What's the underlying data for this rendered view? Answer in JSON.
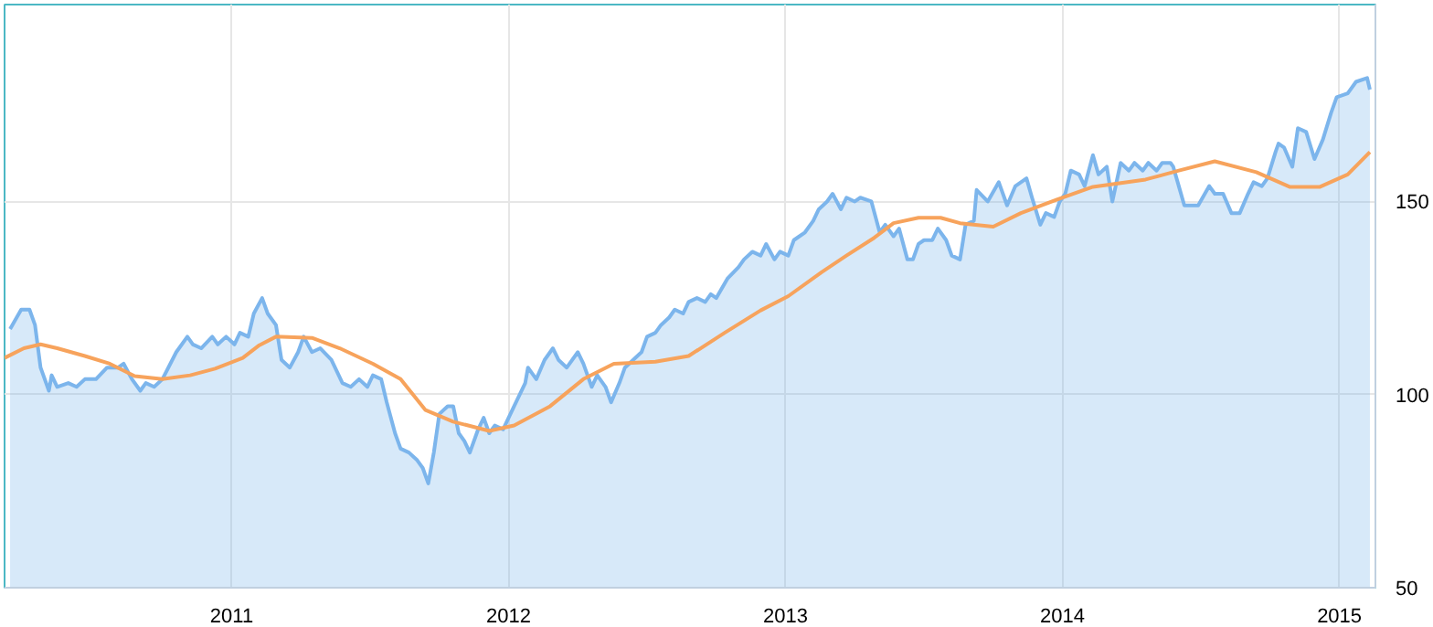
{
  "chart_data": {
    "type": "area",
    "x": [
      2010.2,
      2010.24,
      2010.27,
      2010.29,
      2010.31,
      2010.34,
      2010.35,
      2010.37,
      2010.41,
      2010.44,
      2010.47,
      2010.51,
      2010.55,
      2010.59,
      2010.61,
      2010.64,
      2010.67,
      2010.69,
      2010.72,
      2010.75,
      2010.8,
      2010.84,
      2010.86,
      2010.89,
      2010.93,
      2010.95,
      2010.98,
      2011.01,
      2011.03,
      2011.06,
      2011.08,
      2011.11,
      2011.13,
      2011.16,
      2011.18,
      2011.21,
      2011.24,
      2011.26,
      2011.29,
      2011.32,
      2011.36,
      2011.4,
      2011.43,
      2011.46,
      2011.49,
      2011.51,
      2011.54,
      2011.56,
      2011.59,
      2011.61,
      2011.64,
      2011.67,
      2011.69,
      2011.71,
      2011.73,
      2011.75,
      2011.78,
      2011.8,
      2011.82,
      2011.84,
      2011.86,
      2011.89,
      2011.91,
      2011.93,
      2011.95,
      2011.98,
      2012.02,
      2012.06,
      2012.07,
      2012.1,
      2012.13,
      2012.16,
      2012.18,
      2012.21,
      2012.25,
      2012.27,
      2012.3,
      2012.32,
      2012.35,
      2012.37,
      2012.4,
      2012.42,
      2012.45,
      2012.48,
      2012.5,
      2012.53,
      2012.55,
      2012.58,
      2012.6,
      2012.63,
      2012.65,
      2012.68,
      2012.71,
      2012.73,
      2012.75,
      2012.79,
      2012.83,
      2012.85,
      2012.88,
      2012.91,
      2012.93,
      2012.96,
      2012.98,
      2013.01,
      2013.03,
      2013.07,
      2013.1,
      2013.12,
      2013.15,
      2013.17,
      2013.2,
      2013.22,
      2013.25,
      2013.27,
      2013.31,
      2013.34,
      2013.36,
      2013.39,
      2013.41,
      2013.44,
      2013.46,
      2013.48,
      2013.5,
      2013.53,
      2013.55,
      2013.58,
      2013.6,
      2013.63,
      2013.65,
      2013.68,
      2013.69,
      2013.73,
      2013.77,
      2013.8,
      2013.83,
      2013.87,
      2013.89,
      2013.92,
      2013.94,
      2013.97,
      2013.99,
      2014.01,
      2014.03,
      2014.06,
      2014.08,
      2014.11,
      2014.13,
      2014.16,
      2014.18,
      2014.21,
      2014.24,
      2014.26,
      2014.29,
      2014.31,
      2014.34,
      2014.36,
      2014.39,
      2014.4,
      2014.42,
      2014.44,
      2014.46,
      2014.49,
      2014.53,
      2014.55,
      2014.58,
      2014.61,
      2014.64,
      2014.67,
      2014.69,
      2014.72,
      2014.74,
      2014.77,
      2014.78,
      2014.8,
      2014.83,
      2014.85,
      2014.88,
      2014.91,
      2014.94,
      2014.97,
      2014.99,
      2015.03,
      2015.06,
      2015.1,
      2015.11
    ],
    "xlim": [
      2010.18,
      2015.13
    ],
    "xticks": [
      2011,
      2012,
      2013,
      2014,
      2015
    ],
    "ylim": [
      50,
      201
    ],
    "yticks": [
      50,
      100,
      150
    ],
    "grid": true,
    "series": [
      {
        "color": "#7cb5ec",
        "values": [
          117,
          122,
          122,
          118,
          107,
          101,
          105,
          102,
          103,
          102,
          104,
          104,
          107,
          107,
          108,
          104,
          101,
          103,
          102,
          104,
          111,
          115,
          113,
          112,
          115,
          113,
          115,
          113,
          116,
          115,
          121,
          125,
          121,
          118,
          109,
          107,
          111,
          115,
          111,
          112,
          109,
          103,
          102,
          104,
          102,
          105,
          104,
          98,
          90,
          86,
          85,
          83,
          81,
          77,
          85,
          95,
          97,
          97,
          90,
          88,
          85,
          91,
          94,
          90,
          92,
          91,
          97,
          103,
          107,
          104,
          109,
          112,
          109,
          107,
          111,
          108,
          102,
          105,
          102,
          98,
          103,
          107,
          109,
          111,
          115,
          116,
          118,
          120,
          122,
          121,
          124,
          125,
          124,
          126,
          125,
          130,
          133,
          135,
          137,
          136,
          139,
          135,
          137,
          136,
          140,
          142,
          145,
          148,
          150,
          152,
          148,
          151,
          150,
          151,
          150,
          142,
          144,
          141,
          143,
          135,
          135,
          139,
          140,
          140,
          143,
          140,
          136,
          135,
          144,
          145,
          153,
          150,
          155,
          149,
          154,
          156,
          151,
          144,
          147,
          146,
          150,
          152,
          158,
          157,
          154,
          162,
          157,
          159,
          150,
          160,
          158,
          160,
          158,
          160,
          158,
          160,
          160,
          159,
          154,
          149,
          149,
          149,
          154,
          152,
          152,
          147,
          147,
          152,
          155,
          154,
          156,
          163,
          165,
          164,
          159,
          169,
          168,
          161,
          166,
          173,
          177,
          178,
          181,
          182,
          179
        ]
      },
      {
        "type": "line",
        "color": "#f7a35c",
        "x": [
          2010.18,
          2010.25,
          2010.31,
          2010.37,
          2010.47,
          2010.56,
          2010.65,
          2010.75,
          2010.85,
          2010.94,
          2011.04,
          2011.1,
          2011.16,
          2011.29,
          2011.39,
          2011.51,
          2011.61,
          2011.7,
          2011.8,
          2011.93,
          2012.02,
          2012.15,
          2012.27,
          2012.38,
          2012.53,
          2012.65,
          2012.78,
          2012.91,
          2013.01,
          2013.13,
          2013.22,
          2013.32,
          2013.39,
          2013.48,
          2013.56,
          2013.63,
          2013.75,
          2013.85,
          2013.98,
          2014.11,
          2014.3,
          2014.42,
          2014.55,
          2014.7,
          2014.82,
          2014.93,
          2015.03,
          2015.11
        ],
        "values": [
          109.5,
          112,
          113,
          112,
          110,
          108,
          104.8,
          104,
          105,
          106.7,
          109.5,
          112.8,
          115,
          114.7,
          112,
          108,
          104,
          96,
          93,
          90.6,
          92,
          97,
          104,
          108,
          108.5,
          110,
          116,
          121.8,
          125.5,
          131.7,
          136,
          140.6,
          144.4,
          145.8,
          145.8,
          144.4,
          143.5,
          147,
          150.5,
          153.8,
          155.7,
          158,
          160.4,
          157.6,
          153.8,
          153.8,
          157,
          162.8
        ]
      }
    ]
  }
}
